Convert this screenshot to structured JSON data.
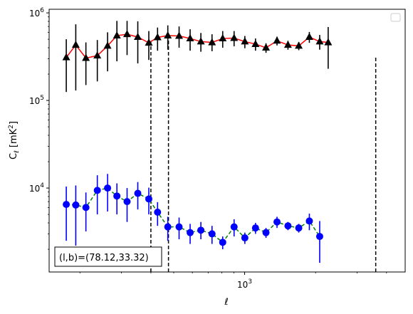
{
  "chart_data": {
    "type": "scatter",
    "xlabel": "ℓ",
    "ylabel": "C_ℓ [mK²]",
    "xscale": "log",
    "yscale": "log",
    "xlim": [
      148,
      4800
    ],
    "ylim": [
      1100,
      1100000
    ],
    "x_ticks": [
      {
        "value": 1000,
        "label": "10^3"
      }
    ],
    "y_ticks": [
      {
        "value": 10000,
        "label": "10^4"
      },
      {
        "value": 100000,
        "label": "10^5"
      },
      {
        "value": 1000000,
        "label": "10^6"
      }
    ],
    "vlines": [
      400,
      475,
      3600
    ],
    "annotation": "(l,b)=(78.12,33.32)",
    "legend": {
      "placement": "top-right",
      "entries": []
    },
    "series": [
      {
        "color": "#000000",
        "line_color": "#ff0000",
        "line_style": "solid",
        "marker": "triangle",
        "points": [
          {
            "x": 175,
            "y": 310000,
            "lo": 125000,
            "hi": 500000
          },
          {
            "x": 192,
            "y": 430000,
            "lo": 130000,
            "hi": 740000
          },
          {
            "x": 212,
            "y": 305000,
            "lo": 150000,
            "hi": 460000
          },
          {
            "x": 237,
            "y": 325000,
            "lo": 165000,
            "hi": 490000
          },
          {
            "x": 262,
            "y": 420000,
            "lo": 215000,
            "hi": 600000
          },
          {
            "x": 287,
            "y": 550000,
            "lo": 280000,
            "hi": 810000
          },
          {
            "x": 317,
            "y": 570000,
            "lo": 330000,
            "hi": 810000
          },
          {
            "x": 352,
            "y": 530000,
            "lo": 265000,
            "hi": 800000
          },
          {
            "x": 392,
            "y": 455000,
            "lo": 290000,
            "hi": 620000
          },
          {
            "x": 427,
            "y": 525000,
            "lo": 370000,
            "hi": 680000
          },
          {
            "x": 472,
            "y": 550000,
            "lo": 380000,
            "hi": 720000
          },
          {
            "x": 527,
            "y": 545000,
            "lo": 400000,
            "hi": 700000
          },
          {
            "x": 587,
            "y": 510000,
            "lo": 370000,
            "hi": 650000
          },
          {
            "x": 652,
            "y": 470000,
            "lo": 360000,
            "hi": 590000
          },
          {
            "x": 727,
            "y": 460000,
            "lo": 365000,
            "hi": 570000
          },
          {
            "x": 807,
            "y": 510000,
            "lo": 400000,
            "hi": 620000
          },
          {
            "x": 902,
            "y": 515000,
            "lo": 415000,
            "hi": 620000
          },
          {
            "x": 1002,
            "y": 470000,
            "lo": 395000,
            "hi": 545000
          },
          {
            "x": 1112,
            "y": 440000,
            "lo": 370000,
            "hi": 510000
          },
          {
            "x": 1232,
            "y": 400000,
            "lo": 350000,
            "hi": 450000
          },
          {
            "x": 1372,
            "y": 480000,
            "lo": 425000,
            "hi": 535000
          },
          {
            "x": 1527,
            "y": 430000,
            "lo": 380000,
            "hi": 480000
          },
          {
            "x": 1697,
            "y": 420000,
            "lo": 375000,
            "hi": 465000
          },
          {
            "x": 1882,
            "y": 530000,
            "lo": 455000,
            "hi": 605000
          },
          {
            "x": 2082,
            "y": 470000,
            "lo": 380000,
            "hi": 560000
          },
          {
            "x": 2262,
            "y": 460000,
            "lo": 230000,
            "hi": 690000
          }
        ]
      },
      {
        "color": "#0000ff",
        "line_color": "#008000",
        "line_style": "dashed",
        "marker": "circle",
        "points": [
          {
            "x": 175,
            "y": 6500,
            "lo": 2500,
            "hi": 10400
          },
          {
            "x": 192,
            "y": 6400,
            "lo": 2200,
            "hi": 10700
          },
          {
            "x": 212,
            "y": 6000,
            "lo": 3200,
            "hi": 8900
          },
          {
            "x": 237,
            "y": 9400,
            "lo": 5000,
            "hi": 14000
          },
          {
            "x": 262,
            "y": 10000,
            "lo": 5400,
            "hi": 14500
          },
          {
            "x": 287,
            "y": 8100,
            "lo": 5000,
            "hi": 11300
          },
          {
            "x": 317,
            "y": 7000,
            "lo": 4100,
            "hi": 10000
          },
          {
            "x": 352,
            "y": 8700,
            "lo": 5700,
            "hi": 11700
          },
          {
            "x": 392,
            "y": 7500,
            "lo": 5000,
            "hi": 10100
          },
          {
            "x": 427,
            "y": 5300,
            "lo": 3700,
            "hi": 6900
          },
          {
            "x": 472,
            "y": 3600,
            "lo": 2500,
            "hi": 4700
          },
          {
            "x": 527,
            "y": 3600,
            "lo": 2600,
            "hi": 4600
          },
          {
            "x": 587,
            "y": 3100,
            "lo": 2300,
            "hi": 3900
          },
          {
            "x": 652,
            "y": 3300,
            "lo": 2600,
            "hi": 4100
          },
          {
            "x": 727,
            "y": 3000,
            "lo": 2300,
            "hi": 3700
          },
          {
            "x": 807,
            "y": 2400,
            "lo": 2000,
            "hi": 2800
          },
          {
            "x": 902,
            "y": 3600,
            "lo": 2800,
            "hi": 4400
          },
          {
            "x": 1002,
            "y": 2700,
            "lo": 2300,
            "hi": 3100
          },
          {
            "x": 1112,
            "y": 3500,
            "lo": 3000,
            "hi": 4000
          },
          {
            "x": 1232,
            "y": 3100,
            "lo": 2700,
            "hi": 3500
          },
          {
            "x": 1372,
            "y": 4100,
            "lo": 3500,
            "hi": 4700
          },
          {
            "x": 1527,
            "y": 3700,
            "lo": 3300,
            "hi": 4100
          },
          {
            "x": 1697,
            "y": 3500,
            "lo": 3100,
            "hi": 3900
          },
          {
            "x": 1882,
            "y": 4200,
            "lo": 3300,
            "hi": 5100
          },
          {
            "x": 2082,
            "y": 2800,
            "lo": 1400,
            "hi": 4200
          }
        ]
      }
    ]
  }
}
